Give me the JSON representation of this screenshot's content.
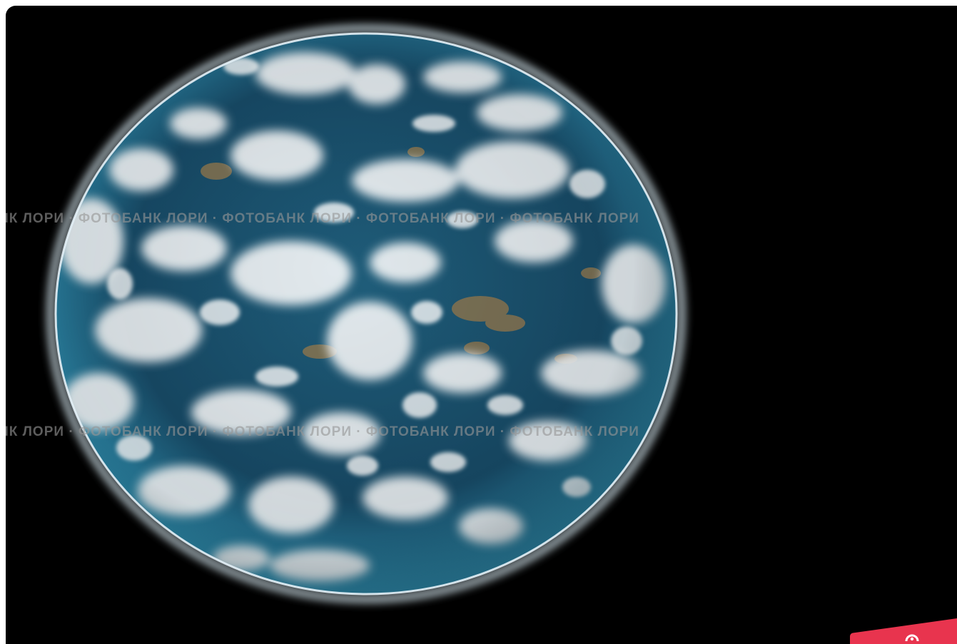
{
  "image": {
    "subject": "planet-in-space",
    "background_color": "#000000",
    "ocean_color": "#1d5a78",
    "cloud_color": "#f2f5f7",
    "land_color": "#8a7550",
    "atmosphere_glow_color": "#cfe3ef"
  },
  "watermark": {
    "row_1": "НК ЛОРИ · ФОТОБАНК ЛОРИ · ФОТОБАНК ЛОРИ · ФОТОБАНК ЛОРИ · ФОТОБАНК ЛОРИ",
    "row_2": "НК ЛОРИ · ФОТОБАНК ЛОРИ · ФОТОБАНК ЛОРИ · ФОТОБАНК ЛОРИ · ФОТОБАНК ЛОРИ"
  },
  "badge": {
    "color": "#e8344e",
    "icon": "logo-icon"
  }
}
